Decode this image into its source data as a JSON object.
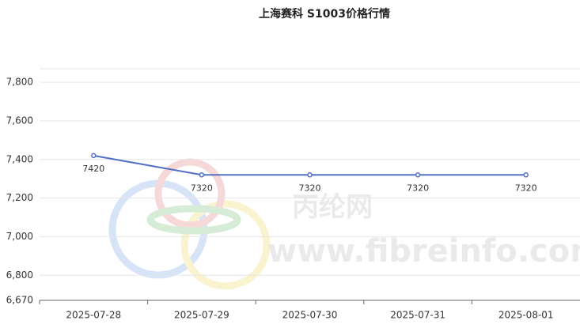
{
  "chart_data": {
    "type": "line",
    "title": "上海赛科 S1003价格行情",
    "categories": [
      "2025-07-28",
      "2025-07-29",
      "2025-07-30",
      "2025-07-31",
      "2025-08-01"
    ],
    "series": [
      {
        "name": "S1003",
        "color": "#5470c6",
        "values": [
          7420,
          7320,
          7320,
          7320,
          7320
        ]
      }
    ],
    "ylim": [
      6670,
      7870
    ],
    "yticks": [
      {
        "value": 6670,
        "label": "6,670"
      },
      {
        "value": 6800,
        "label": "6,800"
      },
      {
        "value": 7000,
        "label": "7,000"
      },
      {
        "value": 7200,
        "label": "7,200"
      },
      {
        "value": 7400,
        "label": "7,400"
      },
      {
        "value": 7600,
        "label": "7,600"
      },
      {
        "value": 7800,
        "label": "7,800"
      }
    ],
    "grid": true
  },
  "watermark": {
    "brand": "丙纶网",
    "url": "www.fibreinfo.com"
  }
}
